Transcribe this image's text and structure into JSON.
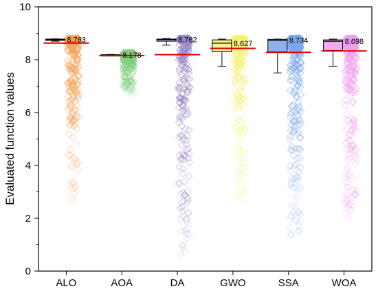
{
  "chart_data": {
    "type": "box",
    "ylabel": "Evaluated function values",
    "xlabel": "",
    "ylim": [
      0,
      10
    ],
    "yticks": [
      0,
      2,
      4,
      6,
      8,
      10
    ],
    "grid": false,
    "categories": [
      "ALO",
      "AOA",
      "DA",
      "GWO",
      "SSA",
      "WOA"
    ],
    "series": [
      {
        "category": "ALO",
        "color": "#f5a35a",
        "box": {
          "q1": 8.74,
          "median": 8.763,
          "q3": 8.78,
          "whisker_low": 8.7,
          "whisker_high": 8.79
        },
        "mean_line": 8.63,
        "median_label": "8.763",
        "scatter_min": 2.6,
        "scatter_max": 8.8
      },
      {
        "category": "AOA",
        "color": "#7ed07e",
        "box": {
          "q1": 8.16,
          "median": 8.178,
          "q3": 8.19,
          "whisker_low": 8.15,
          "whisker_high": 8.2
        },
        "mean_line": 8.16,
        "median_label": "8.178",
        "scatter_min": 6.7,
        "scatter_max": 8.25
      },
      {
        "category": "DA",
        "color": "#9b86c4",
        "box": {
          "q1": 8.7,
          "median": 8.762,
          "q3": 8.78,
          "whisker_low": 8.55,
          "whisker_high": 8.8
        },
        "mean_line": 8.19,
        "median_label": "8.762",
        "scatter_min": 0.6,
        "scatter_max": 8.8
      },
      {
        "category": "GWO",
        "color": "#f6f07a",
        "box": {
          "q1": 8.3,
          "median": 8.627,
          "q3": 8.75,
          "whisker_low": 7.75,
          "whisker_high": 8.78
        },
        "mean_line": 8.43,
        "median_label": "8.627",
        "scatter_min": 2.5,
        "scatter_max": 8.8
      },
      {
        "category": "SSA",
        "color": "#7aa6e8",
        "box": {
          "q1": 8.3,
          "median": 8.734,
          "q3": 8.77,
          "whisker_low": 7.5,
          "whisker_high": 8.78
        },
        "mean_line": 8.28,
        "median_label": "8.734",
        "scatter_min": 1.1,
        "scatter_max": 8.8
      },
      {
        "category": "WOA",
        "color": "#ee9cec",
        "box": {
          "q1": 8.35,
          "median": 8.698,
          "q3": 8.75,
          "whisker_low": 7.75,
          "whisker_high": 8.78
        },
        "mean_line": 8.33,
        "median_label": "8.698",
        "scatter_min": 2.0,
        "scatter_max": 8.8
      }
    ],
    "mean_line_color": "#dd0000"
  }
}
